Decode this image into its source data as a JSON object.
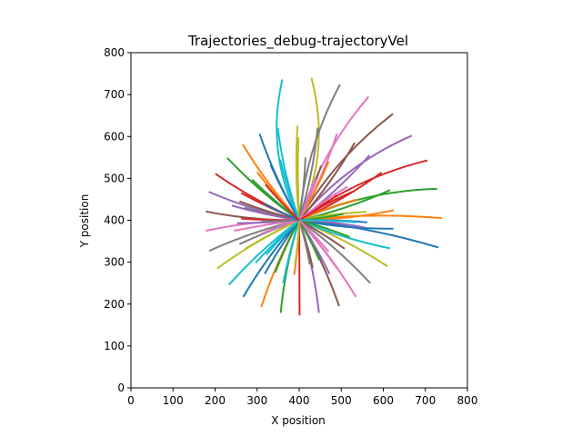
{
  "chart_data": {
    "type": "line",
    "title": "Trajectories_debug-trajectoryVel",
    "xlabel": "X position",
    "ylabel": "Y position",
    "xlim": [
      0,
      800
    ],
    "ylim": [
      0,
      800
    ],
    "xticks": [
      "0",
      "100",
      "200",
      "300",
      "400",
      "500",
      "600",
      "700",
      "800"
    ],
    "yticks": [
      "0",
      "100",
      "200",
      "300",
      "400",
      "500",
      "600",
      "700",
      "800"
    ],
    "grid": false,
    "legend": "none",
    "origin": [
      400,
      400
    ],
    "palette": [
      "#1f77b4",
      "#ff7f0e",
      "#2ca02c",
      "#d62728",
      "#9467bd",
      "#8c564b",
      "#e377c2",
      "#7f7f7f",
      "#bcbd22",
      "#17becf"
    ],
    "series": [
      {
        "color": "#17becf",
        "end": [
          360,
          736
        ],
        "curve": 0.18
      },
      {
        "color": "#bcbd22",
        "end": [
          429,
          740
        ],
        "curve": -0.18
      },
      {
        "color": "#7f7f7f",
        "end": [
          497,
          724
        ],
        "curve": 0.1
      },
      {
        "color": "#e377c2",
        "end": [
          565,
          695
        ],
        "curve": 0.1
      },
      {
        "color": "#8c564b",
        "end": [
          623,
          654
        ],
        "curve": 0.1
      },
      {
        "color": "#9467bd",
        "end": [
          668,
          602
        ],
        "curve": 0.12
      },
      {
        "color": "#d62728",
        "end": [
          705,
          543
        ],
        "curve": 0.1
      },
      {
        "color": "#2ca02c",
        "end": [
          728,
          475
        ],
        "curve": 0.1
      },
      {
        "color": "#ff7f0e",
        "end": [
          740,
          405
        ],
        "curve": 0.05
      },
      {
        "color": "#1f77b4",
        "end": [
          731,
          335
        ],
        "curve": 0.05
      },
      {
        "color": "#bcbd22",
        "end": [
          610,
          290
        ],
        "curve": 0.05
      },
      {
        "color": "#7f7f7f",
        "end": [
          569,
          250
        ],
        "curve": 0.05
      },
      {
        "color": "#e377c2",
        "end": [
          535,
          217
        ],
        "curve": 0.05
      },
      {
        "color": "#8c564b",
        "end": [
          495,
          195
        ],
        "curve": 0.05
      },
      {
        "color": "#9467bd",
        "end": [
          447,
          179
        ],
        "curve": 0.05
      },
      {
        "color": "#d62728",
        "end": [
          401,
          173
        ],
        "curve": 0.0
      },
      {
        "color": "#2ca02c",
        "end": [
          356,
          179
        ],
        "curve": -0.05
      },
      {
        "color": "#ff7f0e",
        "end": [
          310,
          193
        ],
        "curve": -0.05
      },
      {
        "color": "#1f77b4",
        "end": [
          267,
          217
        ],
        "curve": -0.05
      },
      {
        "color": "#17becf",
        "end": [
          233,
          246
        ],
        "curve": -0.05
      },
      {
        "color": "#bcbd22",
        "end": [
          205,
          285
        ],
        "curve": -0.05
      },
      {
        "color": "#7f7f7f",
        "end": [
          186,
          327
        ],
        "curve": -0.05
      },
      {
        "color": "#e377c2",
        "end": [
          178,
          375
        ],
        "curve": -0.05
      },
      {
        "color": "#8c564b",
        "end": [
          178,
          421
        ],
        "curve": 0.05
      },
      {
        "color": "#9467bd",
        "end": [
          185,
          468
        ],
        "curve": 0.05
      },
      {
        "color": "#d62728",
        "end": [
          201,
          511
        ],
        "curve": 0.05
      },
      {
        "color": "#2ca02c",
        "end": [
          229,
          549
        ],
        "curve": 0.05
      },
      {
        "color": "#ff7f0e",
        "end": [
          266,
          581
        ],
        "curve": 0.05
      },
      {
        "color": "#1f77b4",
        "end": [
          306,
          606
        ],
        "curve": 0.05
      },
      {
        "color": "#17becf",
        "end": [
          349,
          620
        ],
        "curve": 0.05
      },
      {
        "color": "#bcbd22",
        "end": [
          396,
          626
        ],
        "curve": 0.04
      },
      {
        "color": "#7f7f7f",
        "end": [
          444,
          621
        ],
        "curve": -0.05
      },
      {
        "color": "#e377c2",
        "end": [
          490,
          607
        ],
        "curve": -0.05
      },
      {
        "color": "#8c564b",
        "end": [
          532,
          585
        ],
        "curve": -0.05
      },
      {
        "color": "#9467bd",
        "end": [
          567,
          555
        ],
        "curve": -0.05
      },
      {
        "color": "#d62728",
        "end": [
          596,
          514
        ],
        "curve": -0.05
      },
      {
        "color": "#2ca02c",
        "end": [
          616,
          472
        ],
        "curve": -0.05
      },
      {
        "color": "#ff7f0e",
        "end": [
          625,
          424
        ],
        "curve": -0.05
      },
      {
        "color": "#1f77b4",
        "end": [
          624,
          380
        ],
        "curve": -0.05
      },
      {
        "color": "#17becf",
        "end": [
          616,
          333
        ],
        "curve": -0.05
      },
      {
        "color": "#9467bd",
        "end": [
          555,
          383
        ],
        "curve": 0.04
      },
      {
        "color": "#bcbd22",
        "end": [
          560,
          420
        ],
        "curve": 0.04
      },
      {
        "color": "#ff7f0e",
        "end": [
          540,
          450
        ],
        "curve": 0.05
      },
      {
        "color": "#d62728",
        "end": [
          532,
          470
        ],
        "curve": 0.05
      },
      {
        "color": "#e377c2",
        "end": [
          515,
          480
        ],
        "curve": 0.05
      },
      {
        "color": "#1f77b4",
        "end": [
          562,
          395
        ],
        "curve": 0.03
      },
      {
        "color": "#2ca02c",
        "end": [
          520,
          360
        ],
        "curve": 0.03
      },
      {
        "color": "#8c564b",
        "end": [
          508,
          332
        ],
        "curve": 0.03
      },
      {
        "color": "#9467bd",
        "end": [
          472,
          272
        ],
        "curve": 0.03
      },
      {
        "color": "#e377c2",
        "end": [
          490,
          285
        ],
        "curve": 0.03
      },
      {
        "color": "#2ca02c",
        "end": [
          448,
          305
        ],
        "curve": 0.03
      },
      {
        "color": "#8c564b",
        "end": [
          432,
          287
        ],
        "curve": 0.03
      },
      {
        "color": "#ff7f0e",
        "end": [
          388,
          270
        ],
        "curve": 0.03
      },
      {
        "color": "#17becf",
        "end": [
          362,
          250
        ],
        "curve": -0.03
      },
      {
        "color": "#2ca02c",
        "end": [
          343,
          275
        ],
        "curve": -0.03
      },
      {
        "color": "#1f77b4",
        "end": [
          318,
          272
        ],
        "curve": -0.03
      },
      {
        "color": "#7f7f7f",
        "end": [
          258,
          343
        ],
        "curve": -0.03
      },
      {
        "color": "#bcbd22",
        "end": [
          272,
          332
        ],
        "curve": -0.03
      },
      {
        "color": "#17becf",
        "end": [
          296,
          298
        ],
        "curve": -0.03
      },
      {
        "color": "#d62728",
        "end": [
          262,
          404
        ],
        "curve": 0.02
      },
      {
        "color": "#9467bd",
        "end": [
          252,
          393
        ],
        "curve": 0.02
      },
      {
        "color": "#e377c2",
        "end": [
          245,
          375
        ],
        "curve": -0.02
      },
      {
        "color": "#7f7f7f",
        "end": [
          270,
          430
        ],
        "curve": 0.02
      },
      {
        "color": "#8c564b",
        "end": [
          258,
          445
        ],
        "curve": 0.03
      },
      {
        "color": "#d62728",
        "end": [
          262,
          465
        ],
        "curve": 0.03
      },
      {
        "color": "#9467bd",
        "end": [
          240,
          435
        ],
        "curve": 0.03
      },
      {
        "color": "#2ca02c",
        "end": [
          288,
          497
        ],
        "curve": 0.03
      },
      {
        "color": "#ff7f0e",
        "end": [
          300,
          515
        ],
        "curve": 0.03
      },
      {
        "color": "#1f77b4",
        "end": [
          332,
          532
        ],
        "curve": 0.03
      },
      {
        "color": "#17becf",
        "end": [
          355,
          545
        ],
        "curve": 0.03
      },
      {
        "color": "#bcbd22",
        "end": [
          398,
          598
        ],
        "curve": 0.02
      },
      {
        "color": "#7f7f7f",
        "end": [
          415,
          550
        ],
        "curve": -0.03
      },
      {
        "color": "#8c564b",
        "end": [
          452,
          530
        ],
        "curve": -0.03
      },
      {
        "color": "#ff7f0e",
        "end": [
          470,
          540
        ],
        "curve": -0.03
      },
      {
        "color": "#e377c2",
        "end": [
          440,
          500
        ],
        "curve": -0.03
      },
      {
        "color": "#d62728",
        "end": [
          490,
          460
        ],
        "curve": -0.03
      },
      {
        "color": "#2ca02c",
        "end": [
          505,
          415
        ],
        "curve": -0.03
      },
      {
        "color": "#9467bd",
        "end": [
          498,
          392
        ],
        "curve": 0.03
      },
      {
        "color": "#17becf",
        "end": [
          535,
          395
        ],
        "curve": 0.03
      },
      {
        "color": "#e377c2",
        "end": [
          470,
          325
        ],
        "curve": 0.03
      },
      {
        "color": "#7f7f7f",
        "end": [
          425,
          295
        ],
        "curve": 0.03
      },
      {
        "color": "#bcbd22",
        "end": [
          390,
          295
        ],
        "curve": 0.03
      },
      {
        "color": "#17becf",
        "end": [
          322,
          318
        ],
        "curve": -0.03
      },
      {
        "color": "#e377c2",
        "end": [
          310,
          368
        ],
        "curve": -0.03
      },
      {
        "color": "#7f7f7f",
        "end": [
          312,
          398
        ],
        "curve": 0.02
      },
      {
        "color": "#1f77b4",
        "end": [
          315,
          440
        ],
        "curve": 0.03
      },
      {
        "color": "#d62728",
        "end": [
          320,
          485
        ],
        "curve": 0.03
      }
    ]
  }
}
